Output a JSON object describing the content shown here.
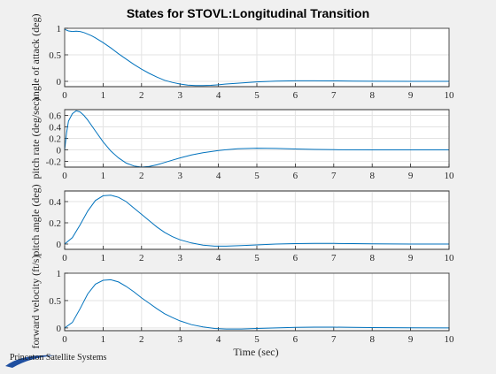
{
  "figure": {
    "title": "States for STOVL:Longitudinal Transition",
    "xlabel": "Time (sec)",
    "logo_text": "Princeton Satellite Systems"
  },
  "colors": {
    "background": "#f0f0f0",
    "line": "#0072bd",
    "grid": "#e3e3e3"
  },
  "chart_data": [
    {
      "type": "line",
      "ylabel": "angle of attack (deg)",
      "xlim": [
        0,
        10
      ],
      "ylim": [
        -0.1,
        1.0
      ],
      "xticks": [
        0,
        1,
        2,
        3,
        4,
        5,
        6,
        7,
        8,
        9,
        10
      ],
      "yticks": [
        0,
        0.5,
        1
      ],
      "ytick_labels": [
        "0",
        "0.5",
        "1"
      ],
      "grid": true,
      "series": [
        {
          "x": [
            0,
            0.1,
            0.2,
            0.3,
            0.4,
            0.5,
            0.6,
            0.7,
            0.8,
            1.0,
            1.2,
            1.4,
            1.6,
            1.8,
            2.0,
            2.2,
            2.4,
            2.6,
            2.8,
            3.0,
            3.2,
            3.4,
            3.6,
            3.8,
            4.0,
            4.2,
            4.5,
            5.0,
            5.5,
            6.0,
            6.5,
            7.0,
            7.5,
            8.0,
            9.0,
            10.0
          ],
          "y": [
            0.98,
            0.95,
            0.94,
            0.945,
            0.94,
            0.92,
            0.89,
            0.86,
            0.82,
            0.73,
            0.63,
            0.52,
            0.42,
            0.32,
            0.23,
            0.15,
            0.08,
            0.02,
            -0.02,
            -0.05,
            -0.07,
            -0.08,
            -0.08,
            -0.075,
            -0.065,
            -0.05,
            -0.035,
            -0.01,
            0.005,
            0.01,
            0.01,
            0.008,
            0.005,
            0.002,
            0.0,
            0.0
          ]
        }
      ]
    },
    {
      "type": "line",
      "ylabel": "pitch rate (deg/sec)",
      "xlim": [
        0,
        10
      ],
      "ylim": [
        -0.3,
        0.7
      ],
      "xticks": [
        0,
        1,
        2,
        3,
        4,
        5,
        6,
        7,
        8,
        9,
        10
      ],
      "yticks": [
        -0.2,
        0,
        0.2,
        0.4,
        0.6
      ],
      "ytick_labels": [
        "-0.2",
        "0",
        "0.2",
        "0.4",
        "0.6"
      ],
      "grid": true,
      "series": [
        {
          "x": [
            0,
            0.05,
            0.1,
            0.2,
            0.3,
            0.4,
            0.5,
            0.6,
            0.8,
            1.0,
            1.2,
            1.4,
            1.6,
            1.8,
            2.0,
            2.2,
            2.4,
            2.6,
            2.8,
            3.0,
            3.3,
            3.6,
            4.0,
            4.5,
            5.0,
            5.5,
            6.0,
            6.5,
            7.0,
            8.0,
            9.0,
            10.0
          ],
          "y": [
            0.0,
            0.3,
            0.5,
            0.63,
            0.68,
            0.66,
            0.6,
            0.52,
            0.33,
            0.14,
            -0.02,
            -0.14,
            -0.23,
            -0.28,
            -0.3,
            -0.29,
            -0.26,
            -0.22,
            -0.18,
            -0.14,
            -0.09,
            -0.05,
            -0.01,
            0.02,
            0.03,
            0.025,
            0.015,
            0.008,
            0.003,
            0.0,
            0.0,
            0.0
          ]
        }
      ]
    },
    {
      "type": "line",
      "ylabel": "pitch angle (deg)",
      "xlim": [
        0,
        10
      ],
      "ylim": [
        -0.05,
        0.5
      ],
      "xticks": [
        0,
        1,
        2,
        3,
        4,
        5,
        6,
        7,
        8,
        9,
        10
      ],
      "yticks": [
        0,
        0.2,
        0.4
      ],
      "ytick_labels": [
        "0",
        "0.2",
        "0.4"
      ],
      "grid": true,
      "series": [
        {
          "x": [
            0,
            0.2,
            0.4,
            0.6,
            0.8,
            1.0,
            1.2,
            1.4,
            1.6,
            1.8,
            2.0,
            2.2,
            2.4,
            2.6,
            2.8,
            3.0,
            3.3,
            3.6,
            3.9,
            4.2,
            4.6,
            5.0,
            5.5,
            6.0,
            6.5,
            7.0,
            7.5,
            8.0,
            9.0,
            10.0
          ],
          "y": [
            0.0,
            0.06,
            0.18,
            0.31,
            0.41,
            0.455,
            0.46,
            0.44,
            0.4,
            0.34,
            0.28,
            0.22,
            0.16,
            0.11,
            0.07,
            0.04,
            0.01,
            -0.01,
            -0.02,
            -0.02,
            -0.015,
            -0.008,
            0.0,
            0.004,
            0.006,
            0.006,
            0.004,
            0.002,
            0.0,
            0.0
          ]
        }
      ]
    },
    {
      "type": "line",
      "ylabel": "forward velocity (ft/s)",
      "xlim": [
        0,
        10
      ],
      "ylim": [
        -0.05,
        1.0
      ],
      "xticks": [
        0,
        1,
        2,
        3,
        4,
        5,
        6,
        7,
        8,
        9,
        10
      ],
      "yticks": [
        0,
        0.5,
        1
      ],
      "ytick_labels": [
        "0",
        "0.5",
        "1"
      ],
      "grid": true,
      "series": [
        {
          "x": [
            0,
            0.2,
            0.4,
            0.6,
            0.8,
            1.0,
            1.2,
            1.4,
            1.6,
            1.8,
            2.0,
            2.2,
            2.4,
            2.6,
            2.8,
            3.0,
            3.3,
            3.6,
            3.9,
            4.2,
            4.6,
            5.0,
            5.5,
            6.0,
            6.5,
            7.0,
            7.5,
            8.0,
            9.0,
            10.0
          ],
          "y": [
            0.0,
            0.1,
            0.35,
            0.62,
            0.8,
            0.87,
            0.88,
            0.84,
            0.76,
            0.66,
            0.55,
            0.45,
            0.35,
            0.26,
            0.19,
            0.13,
            0.06,
            0.02,
            -0.01,
            -0.02,
            -0.02,
            -0.01,
            0.0,
            0.01,
            0.015,
            0.015,
            0.01,
            0.006,
            0.002,
            0.0
          ]
        }
      ]
    }
  ]
}
